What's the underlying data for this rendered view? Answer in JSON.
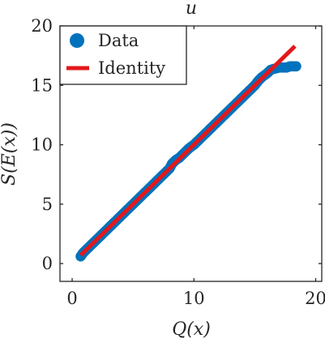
{
  "chart_data": {
    "type": "scatter",
    "title": "u",
    "xlabel": "Q(x)",
    "ylabel": "S(E(x))",
    "xlim": [
      -1,
      20.5
    ],
    "ylim": [
      -1.5,
      20
    ],
    "xticks": [
      0,
      10,
      20
    ],
    "xtick_labels": [
      "0",
      "10",
      "20"
    ],
    "yticks": [
      0,
      5,
      10,
      15,
      20
    ],
    "ytick_labels": [
      "0",
      "5",
      "10",
      "15",
      "20"
    ],
    "grid": false,
    "legend_position": "top-left",
    "series": [
      {
        "name": "Data",
        "type": "scatter",
        "color": "#0072BD",
        "x": [
          0.7,
          0.9,
          1.1,
          1.3,
          1.5,
          1.8,
          2.0,
          2.3,
          2.6,
          3.0,
          3.3,
          3.6,
          4.0,
          4.3,
          4.6,
          5.0,
          5.3,
          5.6,
          6.0,
          6.3,
          6.6,
          7.0,
          7.3,
          7.6,
          8.0,
          8.2,
          8.5,
          8.8,
          9.0,
          9.3,
          9.6,
          10.0,
          10.3,
          10.6,
          11.0,
          11.3,
          11.6,
          12.0,
          12.3,
          12.6,
          13.0,
          13.3,
          13.6,
          14.0,
          14.3,
          14.6,
          15.0,
          15.3,
          15.6,
          16.0,
          16.3,
          16.6,
          17.0,
          17.3,
          17.6,
          17.9,
          18.4
        ],
        "y": [
          0.6,
          0.9,
          1.1,
          1.3,
          1.5,
          1.8,
          2.0,
          2.3,
          2.6,
          3.0,
          3.3,
          3.6,
          4.0,
          4.3,
          4.6,
          5.0,
          5.3,
          5.6,
          6.0,
          6.3,
          6.6,
          7.0,
          7.3,
          7.6,
          8.0,
          8.4,
          8.7,
          8.9,
          9.1,
          9.4,
          9.7,
          10.0,
          10.3,
          10.6,
          11.0,
          11.3,
          11.6,
          12.0,
          12.3,
          12.6,
          13.0,
          13.3,
          13.6,
          14.0,
          14.3,
          14.6,
          15.0,
          15.4,
          15.7,
          16.0,
          16.3,
          16.4,
          16.5,
          16.5,
          16.5,
          16.6,
          16.6
        ]
      },
      {
        "name": "Identity",
        "type": "line",
        "color": "#E3181B",
        "x": [
          0.7,
          18.3
        ],
        "y": [
          0.7,
          18.3
        ]
      }
    ],
    "legend": [
      {
        "label": "Data",
        "marker": "circle"
      },
      {
        "label": "Identity",
        "marker": "line"
      }
    ]
  }
}
